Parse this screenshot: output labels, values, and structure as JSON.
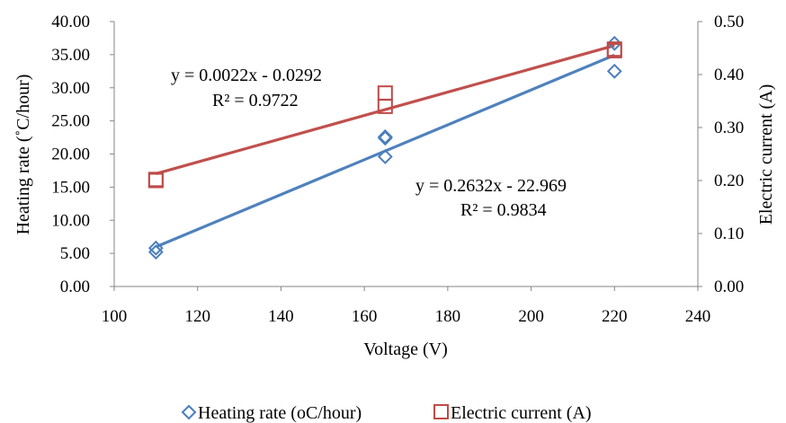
{
  "chart_data": {
    "type": "scatter",
    "x_label": "Voltage (V)",
    "y_label_left": "Heating rate (˚C/hour)",
    "y_label_right": "Electric current (A)",
    "x_range": [
      100,
      240
    ],
    "x_ticks": [
      "100",
      "120",
      "140",
      "160",
      "180",
      "200",
      "220",
      "240"
    ],
    "y_left_range": [
      0,
      40
    ],
    "y_left_ticks": [
      "0.00",
      "5.00",
      "10.00",
      "15.00",
      "20.00",
      "25.00",
      "30.00",
      "35.00",
      "40.00"
    ],
    "y_right_range": [
      0,
      0.5
    ],
    "y_right_ticks": [
      "0.00",
      "0.10",
      "0.20",
      "0.30",
      "0.40",
      "0.50"
    ],
    "grid": false,
    "legend_position": "bottom",
    "series": [
      {
        "name": "Heating rate (oC/hour)",
        "axis": "left",
        "marker": "diamond",
        "color": "#4a7ebb",
        "trend_color": "#4f81bd",
        "points": [
          {
            "x": 110,
            "y": 5.2
          },
          {
            "x": 110,
            "y": 5.8
          },
          {
            "x": 165,
            "y": 19.6
          },
          {
            "x": 165,
            "y": 22.4
          },
          {
            "x": 165,
            "y": 22.6
          },
          {
            "x": 220,
            "y": 32.5
          },
          {
            "x": 220,
            "y": 36.7
          }
        ],
        "trendline": {
          "slope": 0.2632,
          "intercept": -22.969
        },
        "equation": "y = 0.2632x - 22.969",
        "r2": "R² = 0.9834"
      },
      {
        "name": "Electric current (A)",
        "axis": "right",
        "marker": "square",
        "color": "#be4b48",
        "trend_color": "#c0504d",
        "points": [
          {
            "x": 110,
            "y": 0.2
          },
          {
            "x": 110,
            "y": 0.202
          },
          {
            "x": 165,
            "y": 0.34
          },
          {
            "x": 165,
            "y": 0.365
          },
          {
            "x": 220,
            "y": 0.445
          },
          {
            "x": 220,
            "y": 0.448
          }
        ],
        "trendline": {
          "slope": 0.0022,
          "intercept": -0.0292
        },
        "equation": "y = 0.0022x - 0.0292",
        "r2": "R² = 0.9722"
      }
    ]
  }
}
